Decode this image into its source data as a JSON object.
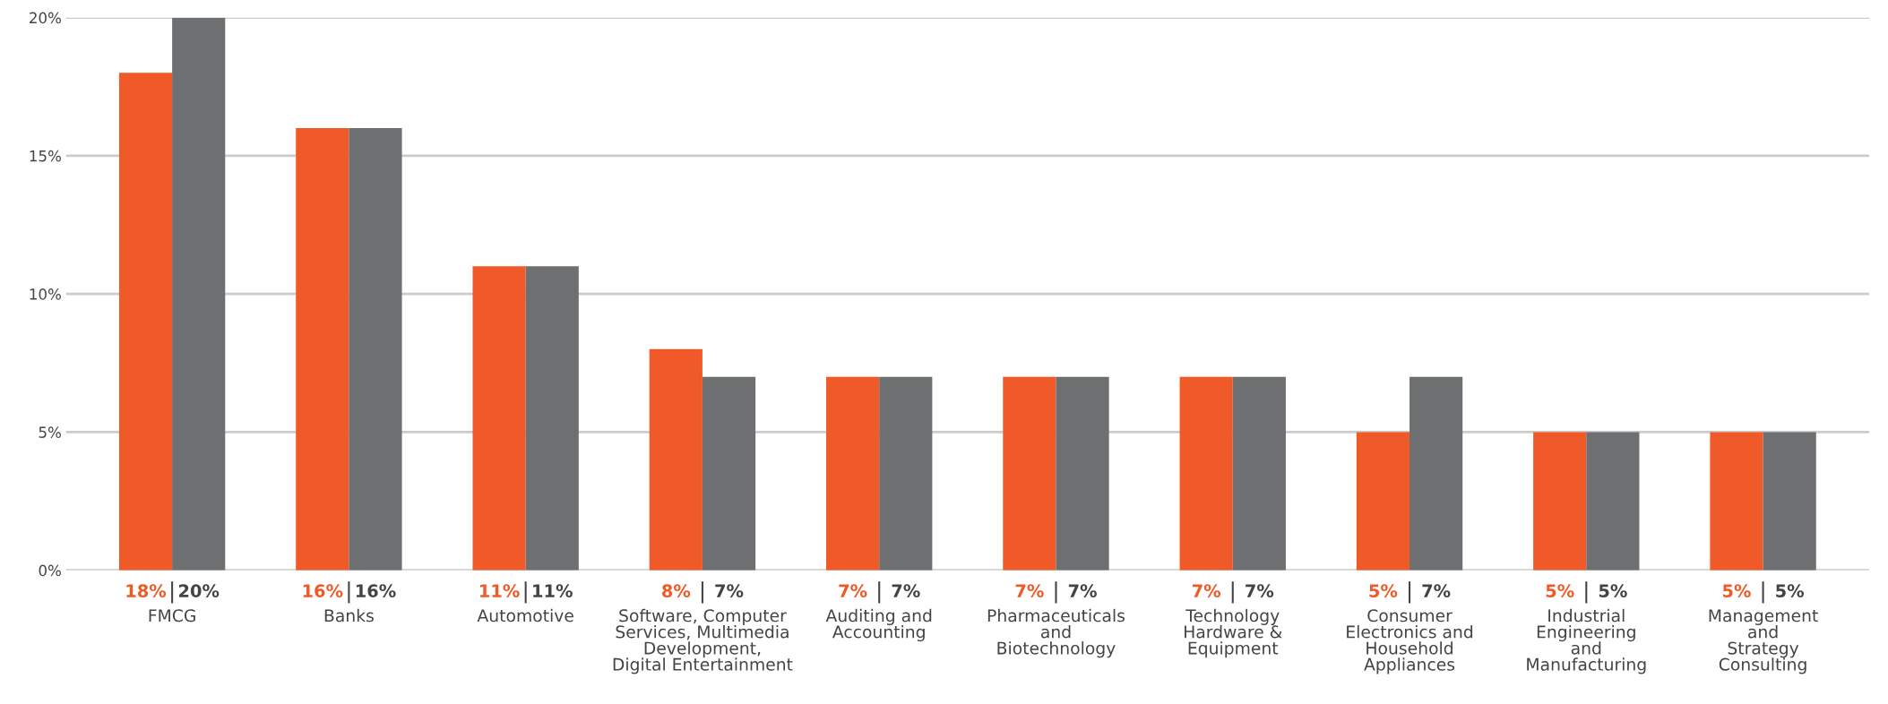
{
  "chart_data": {
    "type": "bar",
    "categories": [
      "FMCG",
      "Banks",
      "Automotive",
      "Software, Computer\nServices, Multimedia\nDevelopment,\nDigital Entertainment",
      "Auditing and\nAccounting",
      "Pharmaceuticals\nand\nBiotechnology",
      "Technology\nHardware &\nEquipment",
      "Consumer\nElectronics and\nHousehold\nAppliances",
      "Industrial\nEngineering\nand\nManufacturing",
      "Management\nand\nStrategy\nConsulting"
    ],
    "series": [
      {
        "color": "#f05a28",
        "values": [
          18,
          16,
          11,
          8,
          7,
          7,
          7,
          5,
          5,
          5
        ],
        "value_labels": [
          "18%",
          "16%",
          "11%",
          "8%",
          "7%",
          "7%",
          "7%",
          "5%",
          "5%",
          "5%"
        ]
      },
      {
        "color": "#6d6f70",
        "values": [
          20,
          16,
          11,
          7,
          7,
          7,
          7,
          7,
          5,
          5
        ],
        "value_labels": [
          "20%",
          "16%",
          "11%",
          "7%",
          "7%",
          "7%",
          "7%",
          "7%",
          "5%",
          "5%"
        ]
      }
    ],
    "ylim": [
      0,
      20
    ],
    "yticks": [
      {
        "value": 0,
        "label": "0%"
      },
      {
        "value": 5,
        "label": "5%"
      },
      {
        "value": 10,
        "label": "10%"
      },
      {
        "value": 15,
        "label": "15%"
      },
      {
        "value": 20,
        "label": "20%"
      }
    ],
    "grid": "y",
    "legend": false
  }
}
